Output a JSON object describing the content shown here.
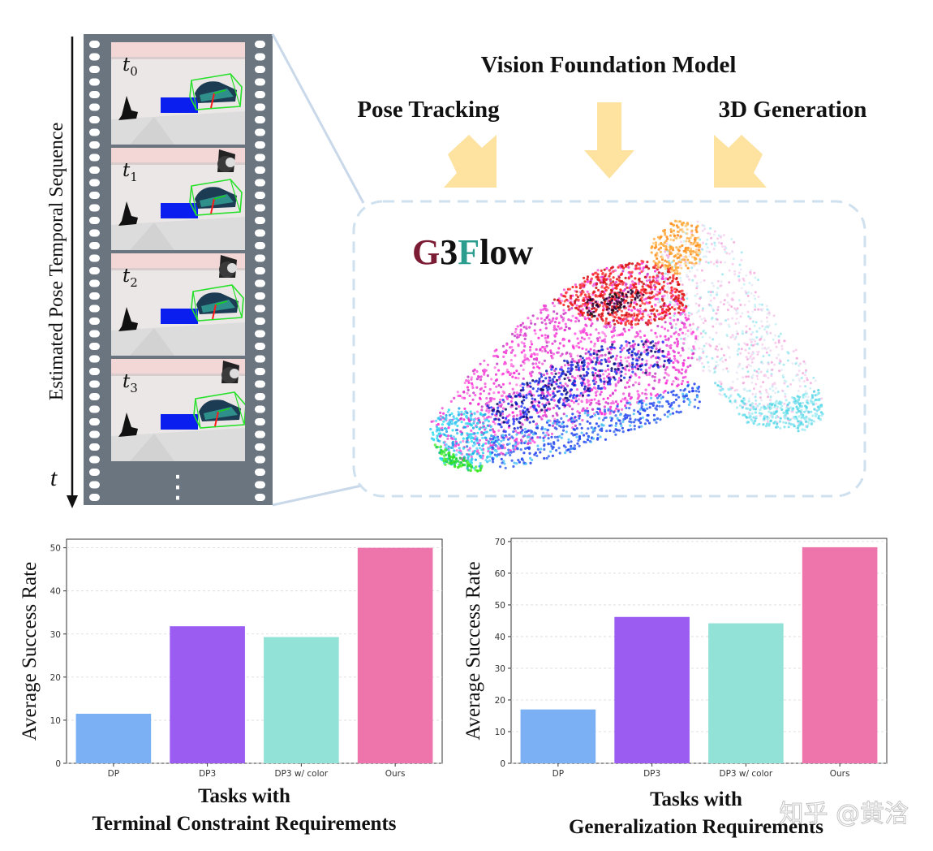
{
  "timeline": {
    "axis_label": "Estimated Pose Temporal Sequence",
    "t_label": "t",
    "frames": [
      {
        "sym": "t",
        "sub": "0"
      },
      {
        "sym": "t",
        "sub": "1"
      },
      {
        "sym": "t",
        "sub": "2"
      },
      {
        "sym": "t",
        "sub": "3"
      }
    ],
    "ellipsis": "⋮"
  },
  "model": {
    "title": "Vision Foundation Model",
    "left_label": "Pose Tracking",
    "right_label": "3D Generation",
    "logo_parts": [
      "G",
      "3",
      "F",
      "low"
    ],
    "colors": {
      "arrow": "#fde2a0",
      "g": "#7b1c34",
      "three": "#111111",
      "f": "#2a9d8f",
      "low": "#111111",
      "dash": "#cfe0ee"
    }
  },
  "chart_data": [
    {
      "type": "bar",
      "title": "",
      "xlabel_lines": [
        "Tasks with",
        "Terminal Constraint Requirements"
      ],
      "ylabel": "Average Success Rate",
      "categories": [
        "DP",
        "DP3",
        "DP3 w/ color",
        "Ours"
      ],
      "values": [
        11.5,
        31.8,
        29.3,
        50.0
      ],
      "colors": [
        "#7bb0f5",
        "#9b5cf2",
        "#93e2d8",
        "#ee75ac"
      ],
      "ylim": [
        0,
        52
      ],
      "yticks": [
        0,
        10,
        20,
        30,
        40,
        50
      ],
      "grid": true
    },
    {
      "type": "bar",
      "title": "",
      "xlabel_lines": [
        "Tasks with",
        "Generalization Requirements"
      ],
      "ylabel": "Average Success Rate",
      "categories": [
        "DP",
        "DP3",
        "DP3 w/ color",
        "Ours"
      ],
      "values": [
        17.0,
        46.2,
        44.2,
        68.2
      ],
      "colors": [
        "#7bb0f5",
        "#9b5cf2",
        "#93e2d8",
        "#ee75ac"
      ],
      "ylim": [
        0,
        71
      ],
      "yticks": [
        0,
        10,
        20,
        30,
        40,
        50,
        60,
        70
      ],
      "grid": true
    }
  ],
  "watermark": "知乎 @黄浛"
}
